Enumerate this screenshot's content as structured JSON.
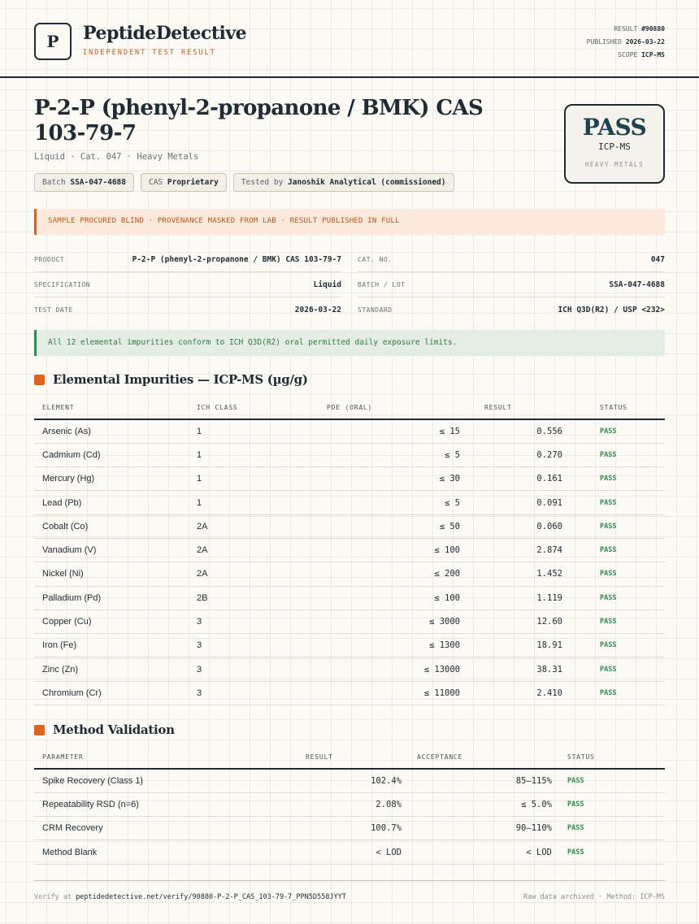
{
  "header": {
    "logo_letter": "P",
    "brand": "PeptideDetective",
    "brand_sub": "INDEPENDENT TEST RESULT",
    "result_label": "RESULT",
    "result_value": "#90880",
    "published_label": "PUBLISHED",
    "published_value": "2026-03-22",
    "scope_label": "SCOPE",
    "scope_value": "ICP-MS"
  },
  "title": "P-2-P (phenyl-2-propanone / BMK) CAS 103-79-7",
  "subtitle": "Liquid · Cat. 047 · Heavy Metals",
  "chips": [
    {
      "label": "Batch",
      "value": "SSA-047-4688"
    },
    {
      "label": "CAS",
      "value": "Proprietary"
    },
    {
      "label": "Tested by",
      "value": "Janoshik Analytical (commissioned)"
    }
  ],
  "pass_card": {
    "status": "PASS",
    "method": "ICP-MS",
    "panel": "HEAVY METALS"
  },
  "notice": "SAMPLE PROCURED BLIND · PROVENANCE MASKED FROM LAB · RESULT PUBLISHED IN FULL",
  "spec_left": [
    {
      "key": "PRODUCT",
      "value": "P-2-P (phenyl-2-propanone / BMK) CAS 103-79-7"
    },
    {
      "key": "SPECIFICATION",
      "value": "Liquid"
    },
    {
      "key": "TEST DATE",
      "value": "2026-03-22"
    }
  ],
  "spec_right": [
    {
      "key": "CAT. NO.",
      "value": "047"
    },
    {
      "key": "BATCH / LOT",
      "value": "SSA-047-4688"
    },
    {
      "key": "STANDARD",
      "value": "ICH Q3D(R2) / USP <232>"
    }
  ],
  "conformance": "All 12 elemental impurities conform to ICH Q3D(R2) oral permitted daily exposure limits.",
  "impurities": {
    "heading": "Elemental Impurities — ICP-MS (µg/g)",
    "columns": [
      "ELEMENT",
      "ICH CLASS",
      "PDE (ORAL)",
      "RESULT",
      "STATUS"
    ],
    "rows": [
      {
        "element": "Arsenic (As)",
        "class": "1",
        "pde": "≤ 15",
        "result": "0.556",
        "status": "PASS"
      },
      {
        "element": "Cadmium (Cd)",
        "class": "1",
        "pde": "≤ 5",
        "result": "0.270",
        "status": "PASS"
      },
      {
        "element": "Mercury (Hg)",
        "class": "1",
        "pde": "≤ 30",
        "result": "0.161",
        "status": "PASS"
      },
      {
        "element": "Lead (Pb)",
        "class": "1",
        "pde": "≤ 5",
        "result": "0.091",
        "status": "PASS"
      },
      {
        "element": "Cobalt (Co)",
        "class": "2A",
        "pde": "≤ 50",
        "result": "0.060",
        "status": "PASS"
      },
      {
        "element": "Vanadium (V)",
        "class": "2A",
        "pde": "≤ 100",
        "result": "2.874",
        "status": "PASS"
      },
      {
        "element": "Nickel (Ni)",
        "class": "2A",
        "pde": "≤ 200",
        "result": "1.452",
        "status": "PASS"
      },
      {
        "element": "Palladium (Pd)",
        "class": "2B",
        "pde": "≤ 100",
        "result": "1.119",
        "status": "PASS"
      },
      {
        "element": "Copper (Cu)",
        "class": "3",
        "pde": "≤ 3000",
        "result": "12.60",
        "status": "PASS"
      },
      {
        "element": "Iron (Fe)",
        "class": "3",
        "pde": "≤ 1300",
        "result": "18.91",
        "status": "PASS"
      },
      {
        "element": "Zinc (Zn)",
        "class": "3",
        "pde": "≤ 13000",
        "result": "38.31",
        "status": "PASS"
      },
      {
        "element": "Chromium (Cr)",
        "class": "3",
        "pde": "≤ 11000",
        "result": "2.410",
        "status": "PASS"
      }
    ]
  },
  "validation": {
    "heading": "Method Validation",
    "columns": [
      "PARAMETER",
      "RESULT",
      "ACCEPTANCE",
      "STATUS"
    ],
    "rows": [
      {
        "parameter": "Spike Recovery (Class 1)",
        "result": "102.4%",
        "acceptance": "85–115%",
        "status": "PASS"
      },
      {
        "parameter": "Repeatability RSD (n=6)",
        "result": "2.08%",
        "acceptance": "≤ 5.0%",
        "status": "PASS"
      },
      {
        "parameter": "CRM Recovery",
        "result": "100.7%",
        "acceptance": "90–110%",
        "status": "PASS"
      },
      {
        "parameter": "Method Blank",
        "result": "< LOD",
        "acceptance": "< LOD",
        "status": "PASS"
      }
    ]
  },
  "footer": {
    "verify_label": "Verify at",
    "verify_url": "peptidedetective.net/verify/90880-P-2-P_CAS_103-79-7_PPN5D558JYYT",
    "right": "Raw data archived · Method: ICP-MS"
  }
}
